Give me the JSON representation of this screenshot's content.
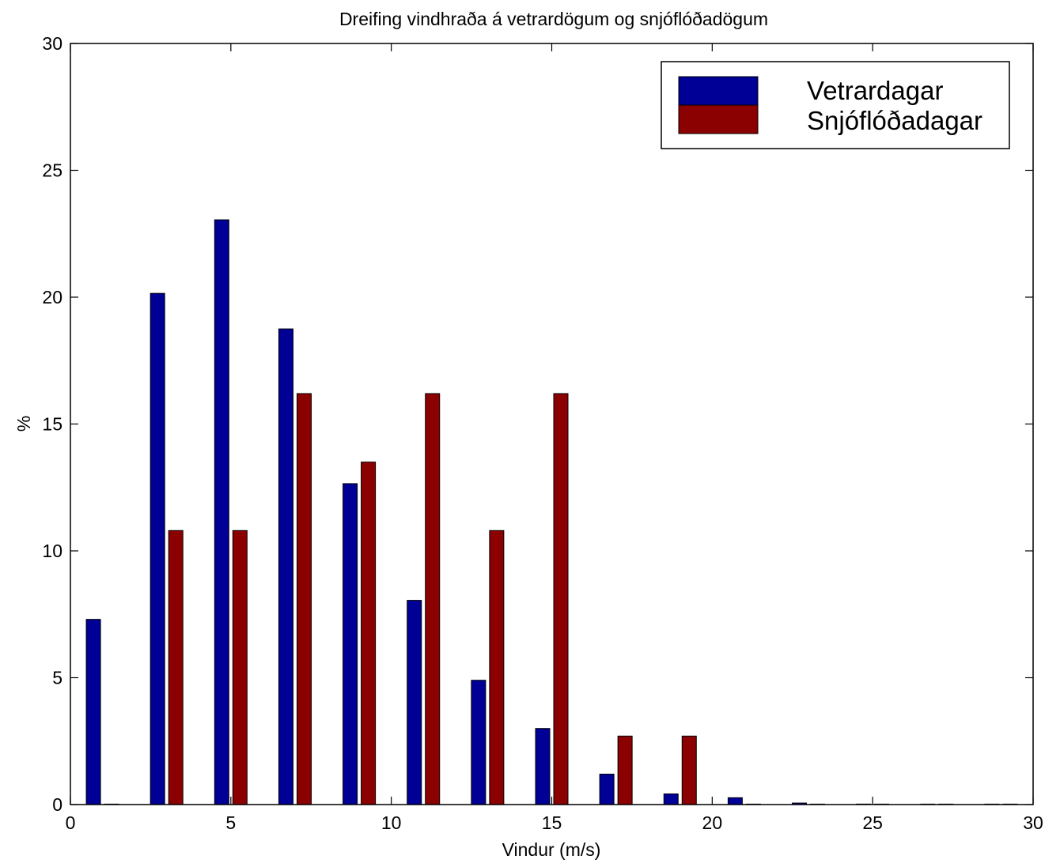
{
  "chart_data": {
    "type": "bar",
    "title": "Dreifing vindhraða á vetrardögum og snjóflóðadögum",
    "xlabel": "Vindur (m/s)",
    "ylabel": "%",
    "xlim": [
      0,
      30
    ],
    "ylim": [
      0,
      30
    ],
    "xticks": [
      "0",
      "5",
      "10",
      "15",
      "20",
      "25",
      "30"
    ],
    "yticks": [
      "0",
      "5",
      "10",
      "15",
      "20",
      "25",
      "30"
    ],
    "grid": false,
    "legend_position": "top-right",
    "x": [
      1,
      3,
      5,
      7,
      9,
      11,
      13,
      15,
      17,
      19,
      21,
      23,
      25,
      27,
      29
    ],
    "series": [
      {
        "name": "Vetrardagar",
        "color": "#000096",
        "values": [
          7.3,
          20.15,
          23.05,
          18.75,
          12.65,
          8.05,
          4.9,
          3.0,
          1.2,
          0.42,
          0.27,
          0.06,
          0.02,
          0.01,
          0.01
        ]
      },
      {
        "name": "Snjóflóðadagar",
        "color": "#8b0000",
        "values": [
          0,
          10.8,
          10.8,
          16.2,
          13.5,
          16.2,
          10.8,
          16.2,
          2.7,
          2.7,
          0,
          0,
          0,
          0,
          0
        ]
      }
    ]
  }
}
